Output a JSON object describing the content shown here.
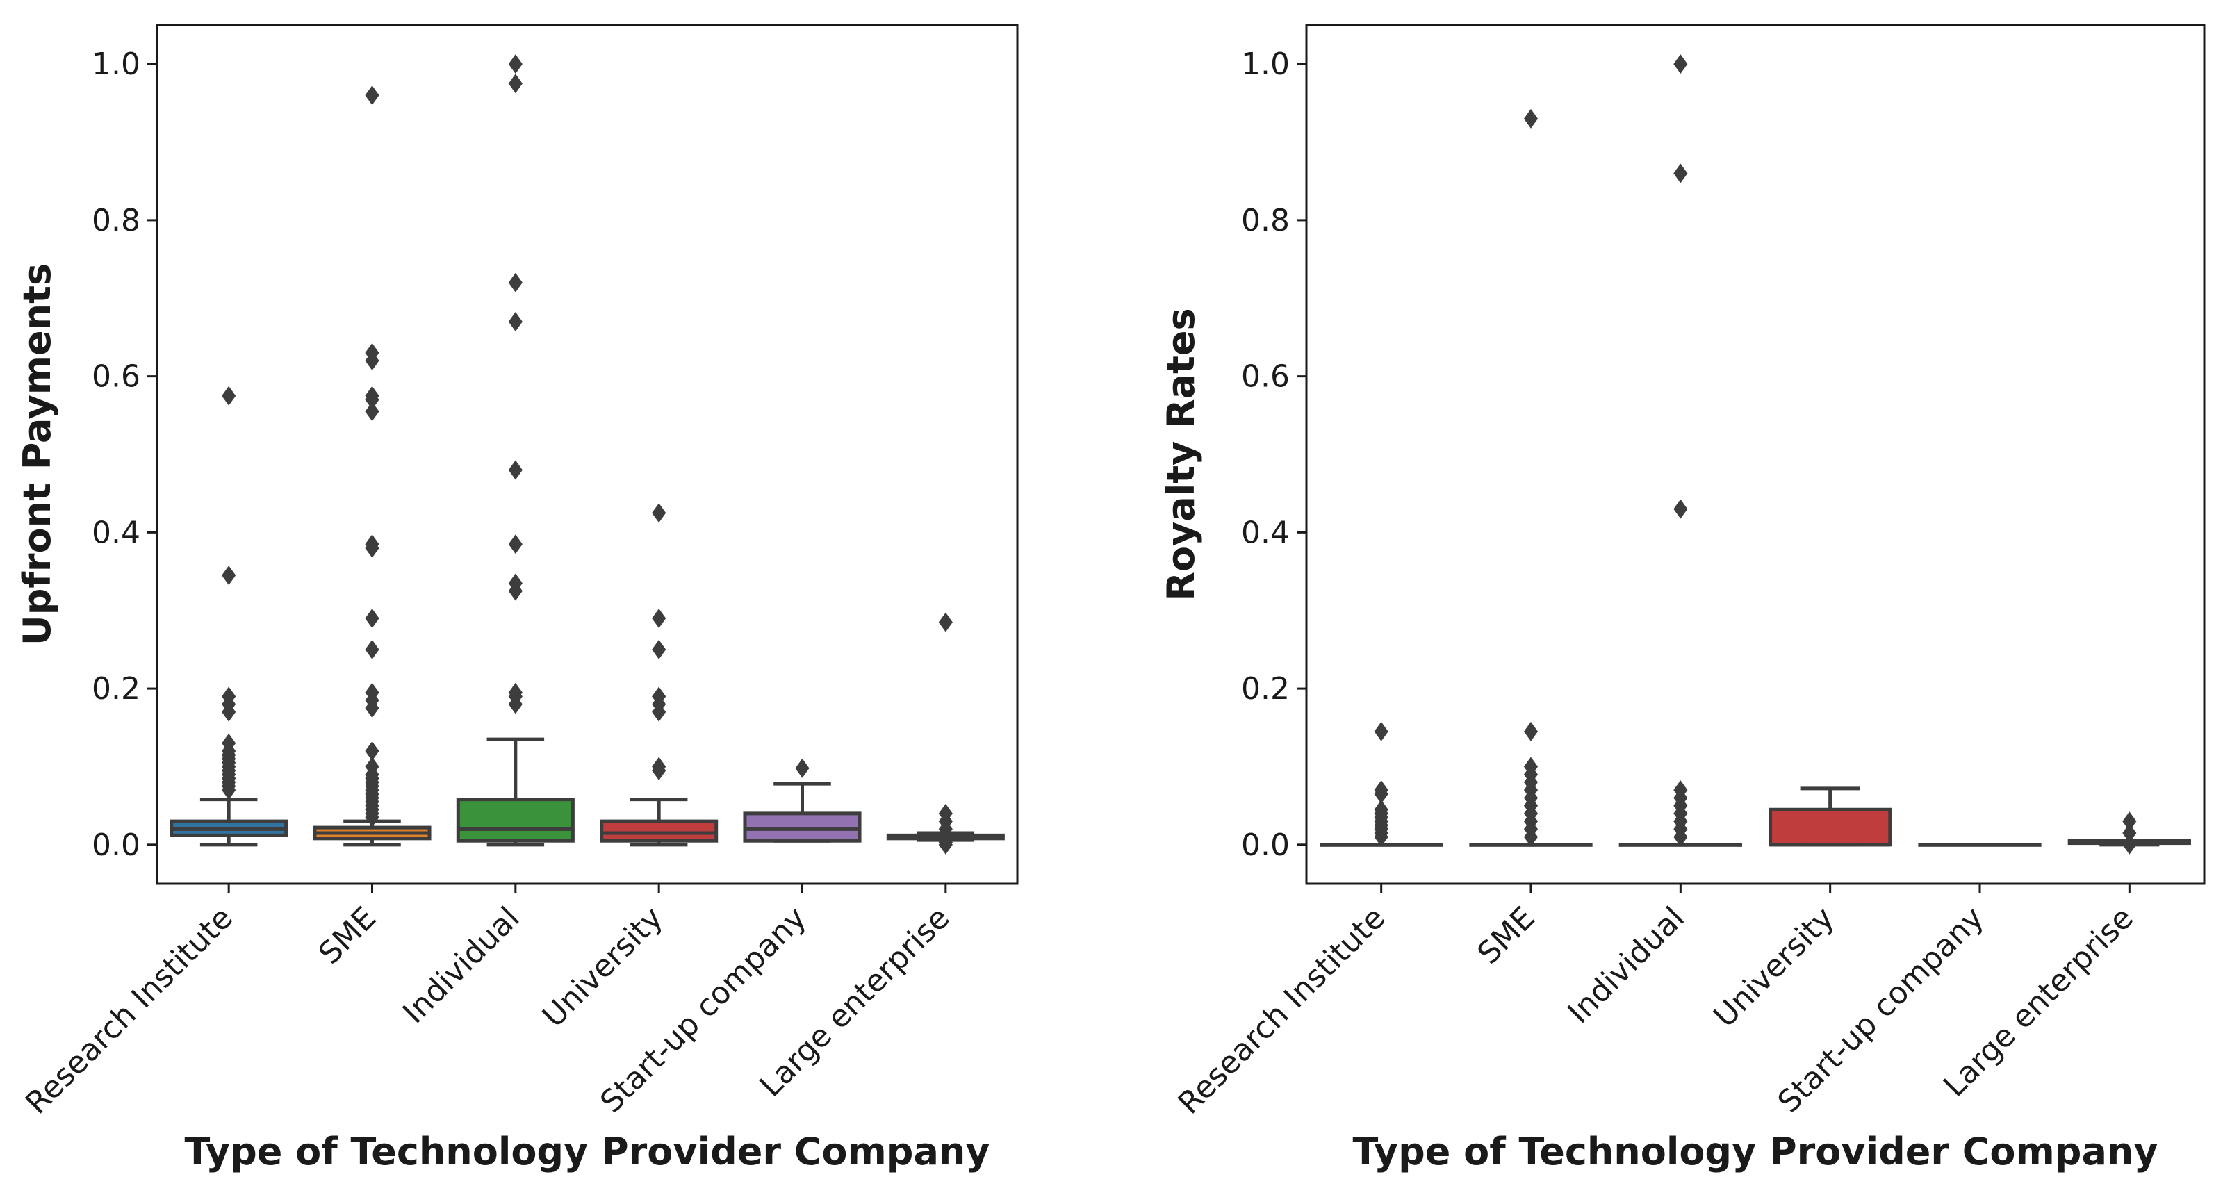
{
  "chart_data": [
    {
      "type": "box",
      "xlabel": "Type of Technology Provider Company",
      "ylabel": "Upfront Payments",
      "ylim": [
        -0.05,
        1.05
      ],
      "yticks": [
        0.0,
        0.2,
        0.4,
        0.6,
        0.8,
        1.0
      ],
      "ytick_labels": [
        "0.0",
        "0.2",
        "0.4",
        "0.6",
        "0.8",
        "1.0"
      ],
      "categories": [
        "Research Institute",
        "SME",
        "Individual",
        "University",
        "Start-up company",
        "Large enterprise"
      ],
      "boxes": [
        {
          "category": "Research Institute",
          "color": "#3274a1",
          "whislo": 0.0,
          "q1": 0.012,
          "med": 0.02,
          "q3": 0.03,
          "whishi": 0.058,
          "outliers": [
            0.07,
            0.075,
            0.08,
            0.085,
            0.09,
            0.095,
            0.1,
            0.105,
            0.11,
            0.115,
            0.12,
            0.13,
            0.17,
            0.18,
            0.19,
            0.345,
            0.575
          ]
        },
        {
          "category": "SME",
          "color": "#e1812c",
          "whislo": 0.0,
          "q1": 0.008,
          "med": 0.015,
          "q3": 0.022,
          "whishi": 0.03,
          "outliers": [
            0.035,
            0.04,
            0.045,
            0.05,
            0.055,
            0.06,
            0.065,
            0.07,
            0.075,
            0.08,
            0.085,
            0.09,
            0.1,
            0.12,
            0.175,
            0.185,
            0.195,
            0.25,
            0.29,
            0.38,
            0.385,
            0.555,
            0.57,
            0.575,
            0.62,
            0.63,
            0.96
          ]
        },
        {
          "category": "Individual",
          "color": "#3a923a",
          "whislo": 0.0,
          "q1": 0.005,
          "med": 0.02,
          "q3": 0.058,
          "whishi": 0.135,
          "outliers": [
            0.18,
            0.19,
            0.195,
            0.325,
            0.335,
            0.385,
            0.48,
            0.67,
            0.72,
            0.975,
            1.0
          ]
        },
        {
          "category": "University",
          "color": "#c03d3e",
          "whislo": 0.0,
          "q1": 0.005,
          "med": 0.015,
          "q3": 0.03,
          "whishi": 0.058,
          "outliers": [
            0.095,
            0.1,
            0.17,
            0.18,
            0.19,
            0.25,
            0.29,
            0.425
          ]
        },
        {
          "category": "Start-up company",
          "color": "#9372b2",
          "whislo": 0.005,
          "q1": 0.005,
          "med": 0.02,
          "q3": 0.04,
          "whishi": 0.078,
          "outliers": [
            0.098
          ]
        },
        {
          "category": "Large enterprise",
          "color": "#845b53",
          "whislo": 0.006,
          "q1": 0.008,
          "med": 0.01,
          "q3": 0.012,
          "whishi": 0.015,
          "outliers": [
            0.0,
            0.003,
            0.005,
            0.02,
            0.03,
            0.04,
            0.285
          ]
        }
      ]
    },
    {
      "type": "box",
      "xlabel": "Type of Technology Provider Company",
      "ylabel": "Royalty Rates",
      "ylim": [
        -0.05,
        1.05
      ],
      "yticks": [
        0.0,
        0.2,
        0.4,
        0.6,
        0.8,
        1.0
      ],
      "ytick_labels": [
        "0.0",
        "0.2",
        "0.4",
        "0.6",
        "0.8",
        "1.0"
      ],
      "categories": [
        "Research Institute",
        "SME",
        "Individual",
        "University",
        "Start-up company",
        "Large enterprise"
      ],
      "boxes": [
        {
          "category": "Research Institute",
          "color": "#3274a1",
          "whislo": 0.0,
          "q1": 0.0,
          "med": 0.0,
          "q3": 0.0,
          "whishi": 0.0,
          "outliers": [
            0.01,
            0.015,
            0.02,
            0.025,
            0.03,
            0.035,
            0.04,
            0.045,
            0.065,
            0.07,
            0.145
          ]
        },
        {
          "category": "SME",
          "color": "#e1812c",
          "whislo": 0.0,
          "q1": 0.0,
          "med": 0.0,
          "q3": 0.0,
          "whishi": 0.0,
          "outliers": [
            0.01,
            0.02,
            0.03,
            0.04,
            0.05,
            0.06,
            0.07,
            0.08,
            0.09,
            0.1,
            0.145,
            0.93
          ]
        },
        {
          "category": "Individual",
          "color": "#3a923a",
          "whislo": 0.0,
          "q1": 0.0,
          "med": 0.0,
          "q3": 0.0,
          "whishi": 0.0,
          "outliers": [
            0.01,
            0.02,
            0.03,
            0.04,
            0.05,
            0.06,
            0.07,
            0.43,
            0.86,
            1.0
          ]
        },
        {
          "category": "University",
          "color": "#c03d3e",
          "whislo": 0.0,
          "q1": 0.0,
          "med": 0.0,
          "q3": 0.045,
          "whishi": 0.072,
          "outliers": []
        },
        {
          "category": "Start-up company",
          "color": "#9372b2",
          "whislo": 0.0,
          "q1": 0.0,
          "med": 0.0,
          "q3": 0.0,
          "whishi": 0.0,
          "outliers": []
        },
        {
          "category": "Large enterprise",
          "color": "#845b53",
          "whislo": 0.0,
          "q1": 0.002,
          "med": 0.003,
          "q3": 0.005,
          "whishi": 0.005,
          "outliers": [
            0.0,
            0.015,
            0.03
          ]
        }
      ]
    }
  ]
}
